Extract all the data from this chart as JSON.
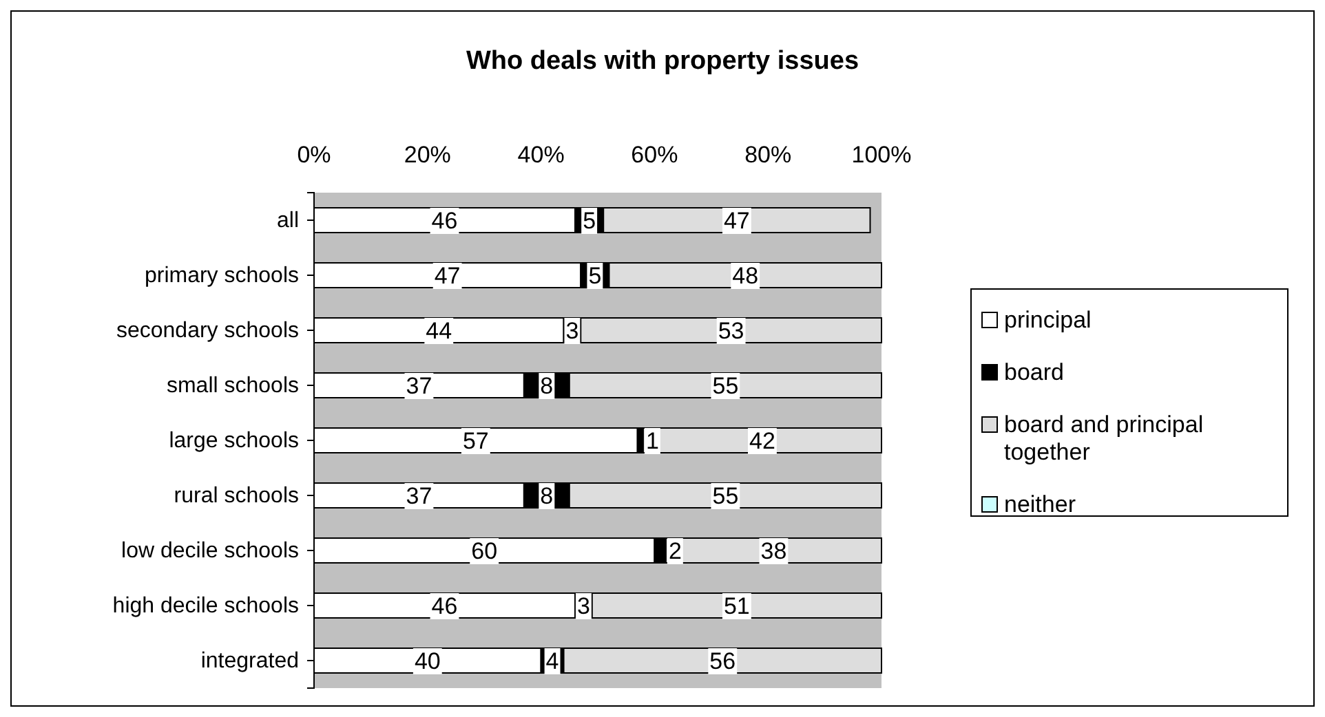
{
  "chart_data": {
    "type": "bar",
    "orientation": "horizontal",
    "stacked": true,
    "title": "Who deals with property issues",
    "categories": [
      "all",
      "primary schools",
      "secondary schools",
      "small schools",
      "large schools",
      "rural schools",
      "low  decile schools",
      "high decile schools",
      "integrated"
    ],
    "series": [
      {
        "name": "principal",
        "color": "#ffffff",
        "values": [
          46,
          47,
          44,
          37,
          57,
          37,
          60,
          46,
          40
        ]
      },
      {
        "name": "board",
        "color": "#000000",
        "values": [
          5,
          5,
          3,
          8,
          1,
          8,
          2,
          3,
          4
        ]
      },
      {
        "name": "board and principal together",
        "color": "#dddddd",
        "values": [
          47,
          48,
          53,
          55,
          42,
          55,
          38,
          51,
          56
        ]
      },
      {
        "name": "neither",
        "color": "#ccffff",
        "values": [
          null,
          null,
          null,
          null,
          null,
          null,
          null,
          null,
          null
        ]
      }
    ],
    "xlim": [
      0,
      100
    ],
    "xticks": [
      {
        "value": 0,
        "label": "0%"
      },
      {
        "value": 20,
        "label": "20%"
      },
      {
        "value": 40,
        "label": "40%"
      },
      {
        "value": 60,
        "label": "60%"
      },
      {
        "value": 80,
        "label": "80%"
      },
      {
        "value": 100,
        "label": "100%"
      }
    ],
    "data_labels": true,
    "legend": "right",
    "grid": false
  }
}
